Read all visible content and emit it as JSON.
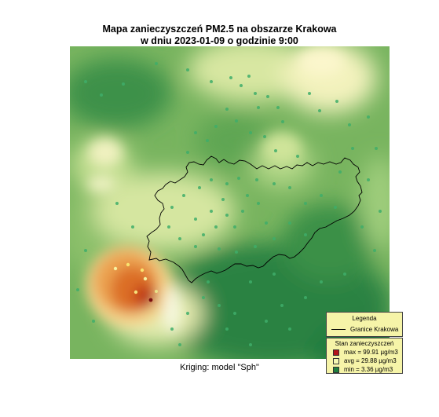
{
  "title_line1": "Mapa zanieczyszczeń PM2.5 na obszarze Krakowa",
  "title_line2": "w dniu 2023-01-09 o godzinie 9:00",
  "subtitle": "Kriging: model \"Sph\"",
  "legend_boundary": {
    "title": "Legenda",
    "item": "Granice Krakowa"
  },
  "legend_pollution": {
    "title": "Stan zanieczyszczeń",
    "items": [
      {
        "label": "max =  99.91 µg/m3",
        "color": "#b4151b"
      },
      {
        "label": "avg =  29.88 µg/m3",
        "color": "#f4f7b2"
      },
      {
        "label": "min =  3.36 µg/m3",
        "color": "#1f7f3f"
      }
    ]
  },
  "colors": {
    "dark_green": "#2f8a45",
    "green": "#67ad57",
    "light_green": "#b3d98a",
    "pale": "#eef2ba",
    "orange": "#eb9a3d",
    "red": "#c3421a",
    "boundary": "#000000",
    "legend_bg": "#f6f4a8"
  }
}
